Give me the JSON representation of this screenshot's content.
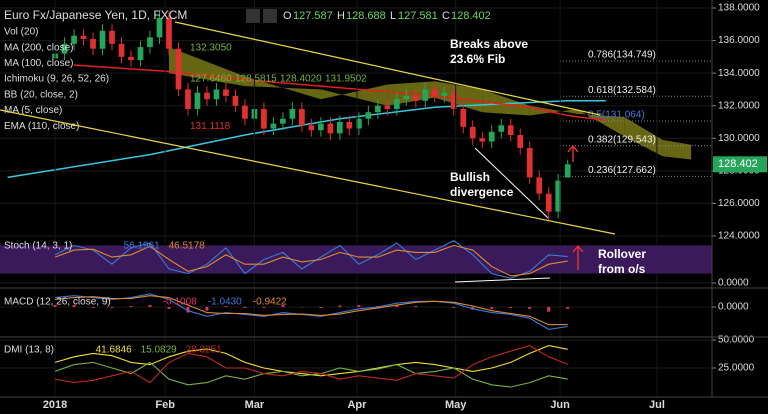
{
  "chart_data": [
    {
      "type": "candlestick",
      "title": "Euro Fx/Japanese Yen, 1D, FXCM",
      "ohlc_labels": [
        "O",
        "H",
        "L",
        "C"
      ],
      "up_color": "#26a65b",
      "down_color": "#e03030",
      "ylim": [
        124,
        138
      ],
      "yticks": [
        {
          "value": 124,
          "label": "124.0000"
        },
        {
          "value": 126,
          "label": "126.0000"
        },
        {
          "value": 128,
          "label": "128.0000"
        },
        {
          "value": 130,
          "label": "130.0000"
        },
        {
          "value": 132,
          "label": "132.0000"
        },
        {
          "value": 134,
          "label": "134.0000"
        },
        {
          "value": 136,
          "label": "136.0000"
        },
        {
          "value": 138,
          "label": "138.0000"
        }
      ],
      "xlim": [
        -5.8,
        69.2
      ],
      "xticks": [
        {
          "value": 0,
          "label": "2018"
        },
        {
          "value": 11.6,
          "label": "Feb"
        },
        {
          "value": 21,
          "label": "Mar"
        },
        {
          "value": 31.8,
          "label": "Apr"
        },
        {
          "value": 42.2,
          "label": "May"
        },
        {
          "value": 53.2,
          "label": "Jun"
        },
        {
          "value": 63.4,
          "label": "Jul"
        }
      ],
      "candles": [
        [
          134.9,
          135.6,
          134.5,
          135.2
        ],
        [
          135.2,
          136.2,
          134.8,
          135.8
        ],
        [
          135.8,
          136.7,
          135.4,
          136.3
        ],
        [
          136.3,
          136.7,
          135.7,
          136.1
        ],
        [
          136.1,
          136.5,
          135.1,
          135.5
        ],
        [
          135.5,
          137.0,
          135.1,
          136.6
        ],
        [
          136.6,
          137.0,
          135.4,
          135.8
        ],
        [
          135.8,
          136.2,
          134.6,
          135.0
        ],
        [
          135.0,
          135.4,
          134.4,
          134.8
        ],
        [
          134.8,
          136.0,
          134.4,
          135.6
        ],
        [
          135.6,
          136.6,
          135.2,
          136.2
        ],
        [
          136.2,
          137.8,
          135.8,
          137.4
        ],
        [
          137.4,
          137.8,
          135.1,
          135.5
        ],
        [
          135.5,
          135.9,
          132.6,
          133.0
        ],
        [
          133.0,
          133.4,
          131.4,
          131.8
        ],
        [
          131.8,
          133.2,
          131.4,
          132.8
        ],
        [
          132.8,
          133.2,
          132.0,
          132.4
        ],
        [
          132.4,
          133.4,
          132.0,
          133.0
        ],
        [
          133.0,
          133.4,
          132.2,
          132.6
        ],
        [
          132.6,
          133.0,
          131.6,
          132.0
        ],
        [
          132.0,
          132.4,
          130.8,
          131.2
        ],
        [
          131.2,
          132.2,
          130.8,
          131.8
        ],
        [
          131.8,
          132.2,
          130.2,
          130.6
        ],
        [
          130.6,
          131.3,
          130.2,
          130.9
        ],
        [
          130.9,
          131.6,
          130.5,
          131.2
        ],
        [
          131.2,
          132.2,
          130.8,
          131.8
        ],
        [
          131.8,
          132.2,
          130.4,
          130.8
        ],
        [
          130.8,
          131.2,
          130.1,
          130.5
        ],
        [
          130.5,
          131.3,
          130.1,
          130.9
        ],
        [
          130.9,
          131.3,
          129.9,
          130.3
        ],
        [
          130.3,
          131.4,
          129.9,
          131.0
        ],
        [
          131.0,
          131.4,
          130.2,
          130.6
        ],
        [
          130.6,
          131.6,
          130.2,
          131.2
        ],
        [
          131.2,
          132.0,
          130.8,
          131.6
        ],
        [
          131.6,
          132.4,
          131.2,
          132.0
        ],
        [
          132.0,
          132.4,
          131.4,
          131.8
        ],
        [
          131.8,
          132.8,
          131.4,
          132.4
        ],
        [
          132.4,
          133.0,
          132.0,
          132.6
        ],
        [
          132.6,
          133.0,
          131.9,
          132.3
        ],
        [
          132.3,
          133.4,
          131.9,
          133.0
        ],
        [
          133.0,
          133.4,
          132.2,
          132.6
        ],
        [
          132.6,
          133.2,
          132.2,
          132.8
        ],
        [
          132.8,
          133.2,
          131.4,
          131.8
        ],
        [
          131.8,
          132.2,
          130.3,
          130.7
        ],
        [
          130.7,
          131.1,
          129.6,
          130.0
        ],
        [
          130.0,
          130.4,
          129.4,
          129.8
        ],
        [
          129.8,
          130.8,
          129.4,
          130.4
        ],
        [
          130.4,
          131.2,
          130.0,
          130.8
        ],
        [
          130.8,
          131.2,
          129.8,
          130.2
        ],
        [
          130.2,
          130.6,
          129.0,
          129.4
        ],
        [
          129.4,
          129.8,
          127.2,
          127.6
        ],
        [
          127.6,
          128.0,
          126.2,
          126.6
        ],
        [
          126.6,
          127.0,
          124.9,
          125.5
        ],
        [
          125.5,
          127.8,
          125.1,
          127.4
        ],
        [
          127.587,
          128.688,
          127.581,
          128.402
        ]
      ],
      "overlays": [
        {
          "name": "MA (200, close)",
          "color": "#3ac6e0",
          "x": [
            -5,
            10,
            20,
            30,
            40,
            50,
            54,
            58
          ],
          "values": [
            127.6,
            129.0,
            130.2,
            131.2,
            131.9,
            132.2,
            132.3,
            132.3
          ]
        },
        {
          "name": "EMA (110, close)",
          "color": "#e02020",
          "x": [
            2,
            12,
            20,
            30,
            40,
            50,
            54,
            58
          ],
          "values": [
            134.5,
            134.1,
            133.6,
            133.1,
            132.6,
            131.9,
            131.4,
            131.1
          ]
        }
      ],
      "cloud": {
        "x": [
          12,
          20,
          28,
          35,
          40,
          45,
          50,
          55,
          60,
          64,
          67
        ],
        "span_a": [
          135.6,
          133.8,
          132.4,
          133.3,
          133.5,
          133.0,
          132.0,
          131.5,
          131.3,
          129.9,
          129.6
        ],
        "span_b": [
          134.0,
          133.2,
          133.0,
          132.0,
          132.5,
          131.6,
          131.4,
          131.8,
          130.1,
          128.9,
          128.7
        ],
        "up_color": "#8a8a1a",
        "down_color": "#7a3a2a"
      },
      "fib": [
        {
          "value": 134.749,
          "label": "0.786(134.749)"
        },
        {
          "value": 132.584,
          "label": "0.618(132.584)"
        },
        {
          "value": 131.064,
          "label": "0.5(131.064)"
        },
        {
          "value": 129.543,
          "label": "0.382(129.543)"
        },
        {
          "value": 127.662,
          "label": "0.236(127.662)"
        }
      ],
      "legend": [
        {
          "label": "Vol (20)",
          "values": []
        },
        {
          "label": "MA (200, close)",
          "values": [
            "132.3050"
          ]
        },
        {
          "label": "MA (100, close)",
          "values": []
        },
        {
          "label": "Ichimoku (9, 26, 52, 26)",
          "values": [
            "127.6460",
            "128.5815",
            "128.4020",
            "131.9502"
          ]
        },
        {
          "label": "BB (20, close, 2)",
          "values": []
        },
        {
          "label": "MA (5, close)",
          "values": []
        },
        {
          "label": "EMA (110, close)",
          "values": [
            "131.1118"
          ]
        }
      ],
      "annotations": [
        "Breaks above",
        "23.6% Fib",
        "Bullish",
        "divergence"
      ]
    },
    {
      "type": "line",
      "title": "Stoch (14, 3, 1)",
      "ylim": [
        0,
        100
      ],
      "band": [
        20,
        80
      ],
      "band_color": "#3a1a5a",
      "yticks": [
        {
          "value": 0,
          "label": "0.0000"
        }
      ],
      "x": [
        0,
        2,
        4,
        6,
        8,
        10,
        12,
        14,
        16,
        18,
        20,
        22,
        24,
        26,
        28,
        30,
        32,
        34,
        36,
        38,
        40,
        42,
        44,
        46,
        48,
        50,
        52,
        54
      ],
      "series": [
        {
          "name": "56.1961",
          "color": "#3a7ad8",
          "values": [
            60,
            80,
            70,
            40,
            75,
            85,
            30,
            20,
            40,
            75,
            20,
            50,
            65,
            30,
            55,
            80,
            40,
            60,
            85,
            50,
            70,
            90,
            60,
            20,
            10,
            25,
            60,
            56.1961
          ]
        },
        {
          "name": "46.5178",
          "color": "#e08a30",
          "values": [
            55,
            70,
            72,
            55,
            60,
            78,
            50,
            25,
            35,
            60,
            40,
            40,
            55,
            45,
            50,
            65,
            55,
            55,
            70,
            65,
            65,
            80,
            70,
            35,
            15,
            20,
            40,
            46.5178
          ]
        }
      ],
      "annotations": [
        "Rollover",
        "from o/s"
      ]
    },
    {
      "type": "line",
      "title": "MACD (12, 26, close, 9)",
      "ylim": [
        -1.5,
        0.8
      ],
      "yticks": [
        {
          "value": 0,
          "label": "0.0000"
        }
      ],
      "x": [
        0,
        2,
        4,
        6,
        8,
        10,
        12,
        14,
        16,
        18,
        20,
        22,
        24,
        26,
        28,
        30,
        32,
        34,
        36,
        38,
        40,
        42,
        44,
        46,
        48,
        50,
        52,
        54
      ],
      "histogram": {
        "name": "-0.1008",
        "color": "#e0306a",
        "values": [
          0.1,
          0.1,
          -0.05,
          -0.05,
          0.05,
          0.1,
          -0.1,
          -0.3,
          -0.2,
          0.05,
          -0.05,
          -0.05,
          0.1,
          -0.02,
          -0.05,
          0.08,
          0.1,
          0.05,
          0.1,
          0.05,
          0,
          -0.05,
          -0.15,
          -0.1,
          -0.05,
          -0.1,
          -0.25,
          -0.1008
        ]
      },
      "series": [
        {
          "name": "-1.0430",
          "color": "#3a7ad8",
          "values": [
            0.5,
            0.6,
            0.5,
            0.4,
            0.5,
            0.7,
            0.4,
            -0.2,
            -0.5,
            -0.3,
            -0.4,
            -0.5,
            -0.3,
            -0.4,
            -0.5,
            -0.3,
            -0.1,
            0,
            0.2,
            0.3,
            0.3,
            0.2,
            -0.1,
            -0.3,
            -0.4,
            -0.6,
            -1.2,
            -1.043
          ]
        },
        {
          "name": "-0.9422",
          "color": "#e08a30",
          "values": [
            0.4,
            0.5,
            0.55,
            0.45,
            0.45,
            0.6,
            0.5,
            0.1,
            -0.3,
            -0.35,
            -0.35,
            -0.45,
            -0.4,
            -0.38,
            -0.45,
            -0.38,
            -0.2,
            -0.05,
            0.1,
            0.25,
            0.3,
            0.25,
            0.05,
            -0.2,
            -0.35,
            -0.5,
            -0.95,
            -0.9422
          ]
        }
      ]
    },
    {
      "type": "line",
      "title": "DMI (13, 8)",
      "ylim": [
        0,
        50
      ],
      "yticks": [
        {
          "value": 25,
          "label": "25.0000"
        },
        {
          "value": 50,
          "label": "50.0000"
        }
      ],
      "x": [
        0,
        2,
        4,
        6,
        8,
        10,
        12,
        14,
        16,
        18,
        20,
        22,
        24,
        26,
        28,
        30,
        32,
        34,
        36,
        38,
        40,
        42,
        44,
        46,
        48,
        50,
        52,
        54
      ],
      "series": [
        {
          "name": "41.6846",
          "color": "#f0e030",
          "values": [
            30,
            35,
            38,
            36,
            30,
            28,
            35,
            40,
            42,
            38,
            30,
            25,
            22,
            20,
            18,
            20,
            22,
            25,
            28,
            30,
            28,
            25,
            22,
            25,
            30,
            38,
            45,
            41.6846
          ]
        },
        {
          "name": "15.0829",
          "color": "#7ab040",
          "values": [
            22,
            28,
            30,
            25,
            20,
            30,
            15,
            10,
            12,
            18,
            15,
            20,
            22,
            18,
            20,
            25,
            22,
            24,
            28,
            20,
            22,
            25,
            15,
            10,
            8,
            12,
            18,
            15.0829
          ]
        },
        {
          "name": "28.3251",
          "color": "#c02828",
          "values": [
            15,
            12,
            14,
            18,
            22,
            12,
            30,
            38,
            35,
            25,
            25,
            20,
            18,
            22,
            20,
            15,
            18,
            16,
            14,
            20,
            18,
            16,
            28,
            35,
            40,
            45,
            35,
            28.3251
          ]
        }
      ]
    }
  ]
}
